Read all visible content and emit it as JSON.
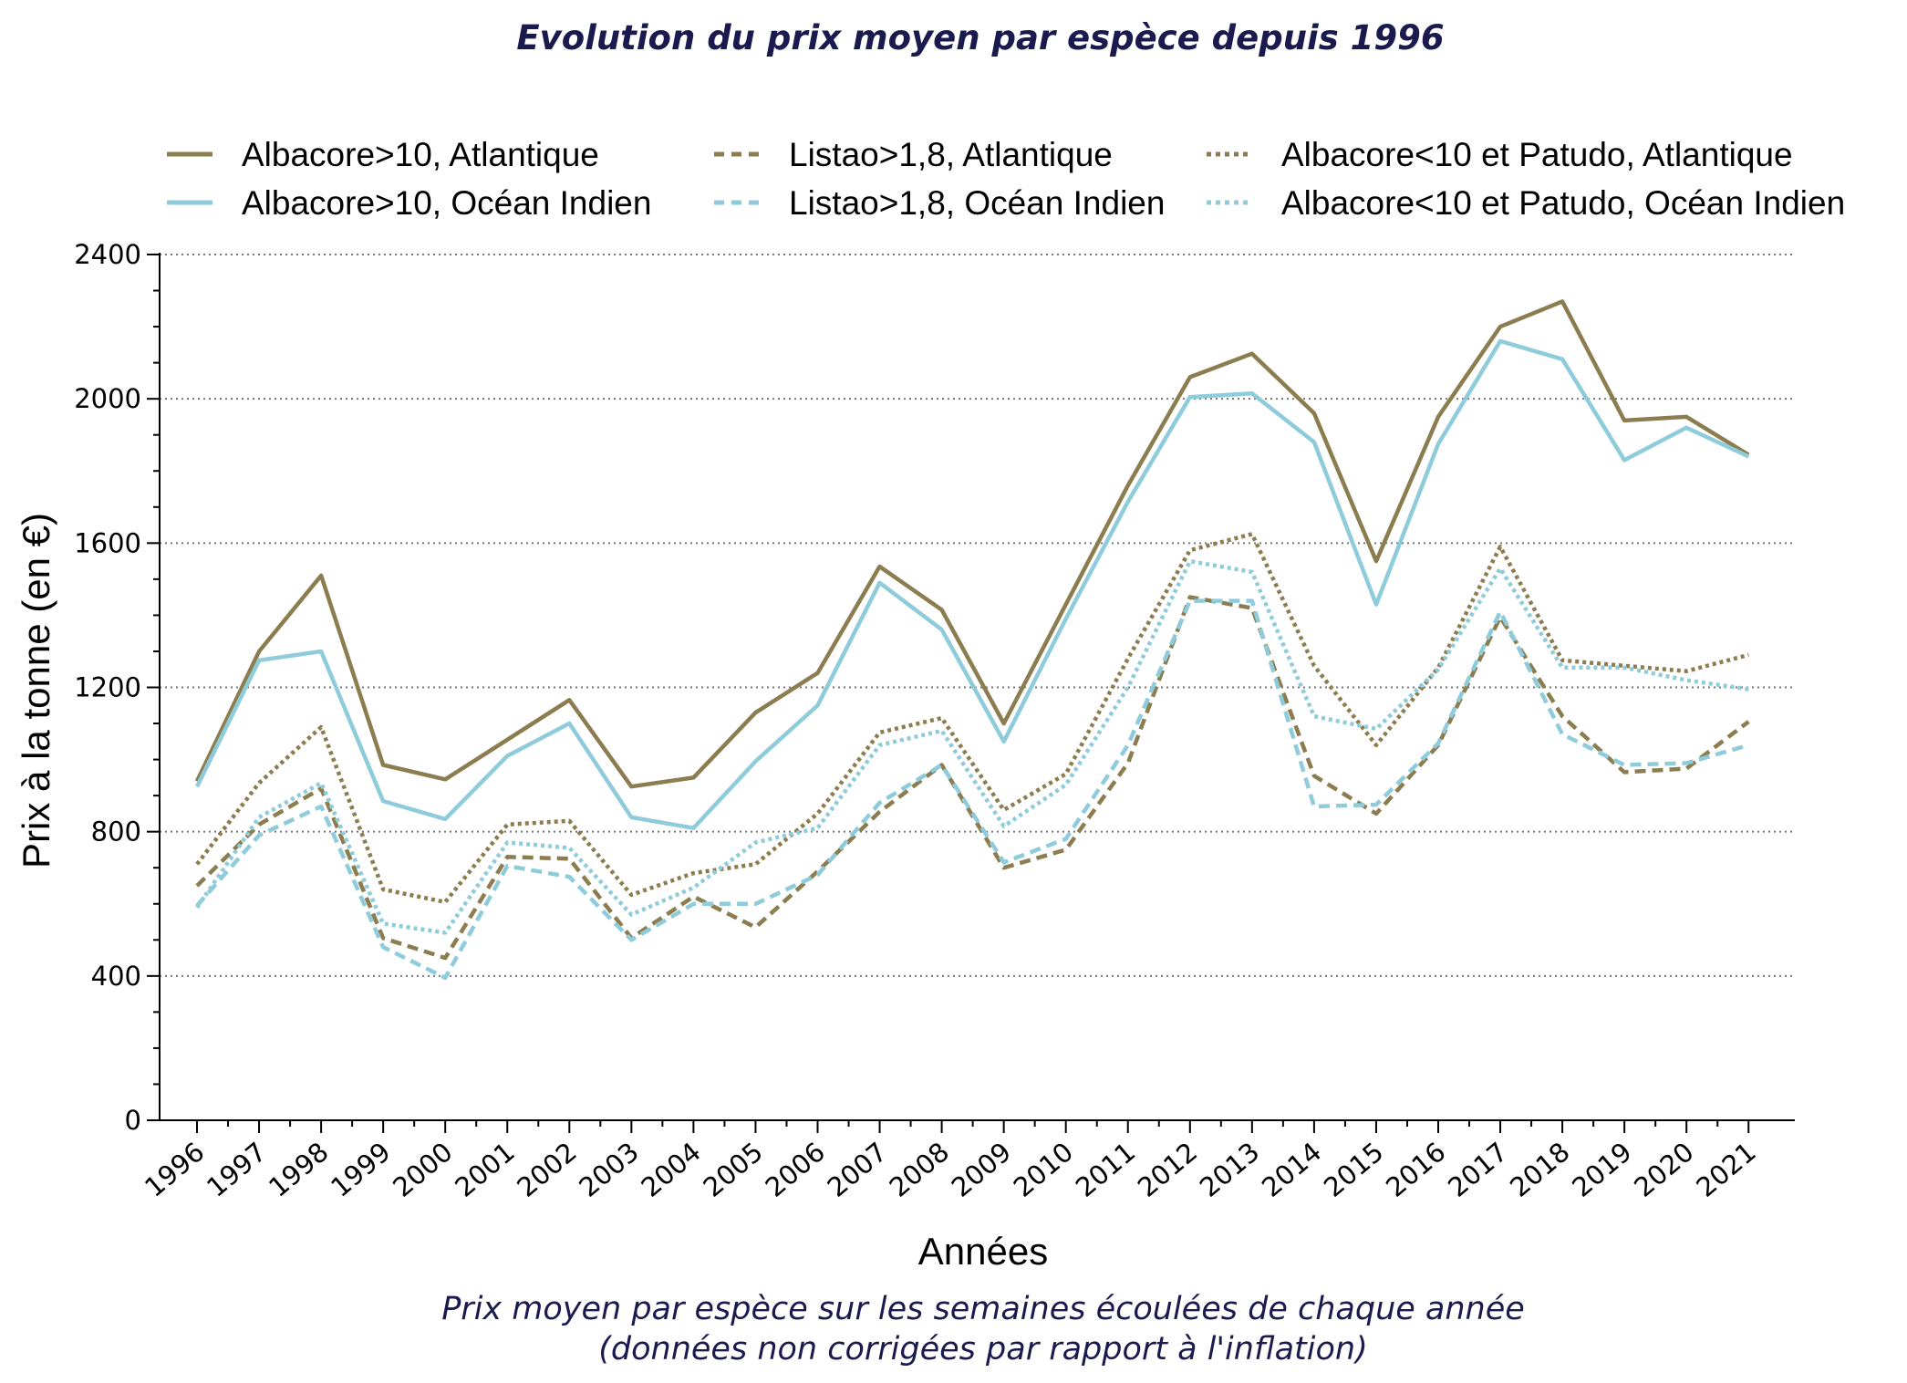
{
  "chart_data": {
    "type": "line",
    "title": "Evolution du prix moyen par espèce depuis 1996",
    "subtitle_lines": [
      "Prix moyen par espèce sur les semaines écoulées de chaque année",
      "(données non corrigées par rapport à l'inflation)"
    ],
    "xlabel": "Années",
    "ylabel": "Prix à la tonne (en €)",
    "ylim": [
      0,
      2400
    ],
    "yticks": [
      "0",
      "400",
      "800",
      "1200",
      "1600",
      "2000",
      "2400"
    ],
    "grid": "horizontal dotted",
    "legend_position": "top",
    "categories": [
      "1996",
      "1997",
      "1998",
      "1999",
      "2000",
      "2001",
      "2002",
      "2003",
      "2004",
      "2005",
      "2006",
      "2007",
      "2008",
      "2009",
      "2010",
      "2011",
      "2012",
      "2013",
      "2014",
      "2015",
      "2016",
      "2017",
      "2018",
      "2019",
      "2020",
      "2021"
    ],
    "series": [
      {
        "name": "Albacore>10, Atlantique",
        "color": "#8b7d4f",
        "style": "solid",
        "values": [
          940,
          1300,
          1510,
          985,
          945,
          1055,
          1165,
          925,
          950,
          1130,
          1240,
          1535,
          1415,
          1100,
          1430,
          1760,
          2060,
          2125,
          1960,
          1550,
          1950,
          2200,
          2270,
          1940,
          1950,
          1845
        ]
      },
      {
        "name": "Albacore>10, Océan Indien",
        "color": "#8ecbdb",
        "style": "solid",
        "values": [
          925,
          1275,
          1300,
          885,
          835,
          1010,
          1100,
          840,
          810,
          995,
          1150,
          1490,
          1360,
          1050,
          1390,
          1715,
          2005,
          2015,
          1880,
          1430,
          1875,
          2160,
          2110,
          1830,
          1920,
          1840
        ]
      },
      {
        "name": "Listao>1,8, Atlantique",
        "color": "#8b7d4f",
        "style": "dashed",
        "values": [
          650,
          820,
          920,
          505,
          450,
          730,
          725,
          505,
          620,
          535,
          690,
          855,
          985,
          700,
          750,
          990,
          1450,
          1420,
          955,
          850,
          1040,
          1395,
          1120,
          965,
          975,
          1105
        ]
      },
      {
        "name": "Listao>1,8, Océan Indien",
        "color": "#8ecbdb",
        "style": "dashed",
        "values": [
          595,
          790,
          870,
          480,
          395,
          705,
          675,
          500,
          600,
          600,
          680,
          880,
          985,
          715,
          780,
          1040,
          1440,
          1440,
          870,
          875,
          1045,
          1410,
          1070,
          985,
          990,
          1040
        ]
      },
      {
        "name": "Albacore<10 et Patudo, Atlantique",
        "color": "#8b7d4f",
        "style": "dotted",
        "values": [
          710,
          935,
          1090,
          640,
          605,
          820,
          830,
          625,
          685,
          710,
          850,
          1075,
          1115,
          860,
          960,
          1280,
          1580,
          1625,
          1260,
          1040,
          1255,
          1590,
          1275,
          1260,
          1245,
          1290
        ]
      },
      {
        "name": "Albacore<10 et Patudo, Océan Indien",
        "color": "#8ecbdb",
        "style": "dotted",
        "values": [
          590,
          840,
          935,
          545,
          520,
          770,
          755,
          570,
          645,
          770,
          810,
          1040,
          1080,
          815,
          930,
          1200,
          1550,
          1520,
          1120,
          1085,
          1250,
          1530,
          1255,
          1255,
          1220,
          1195
        ]
      }
    ]
  }
}
